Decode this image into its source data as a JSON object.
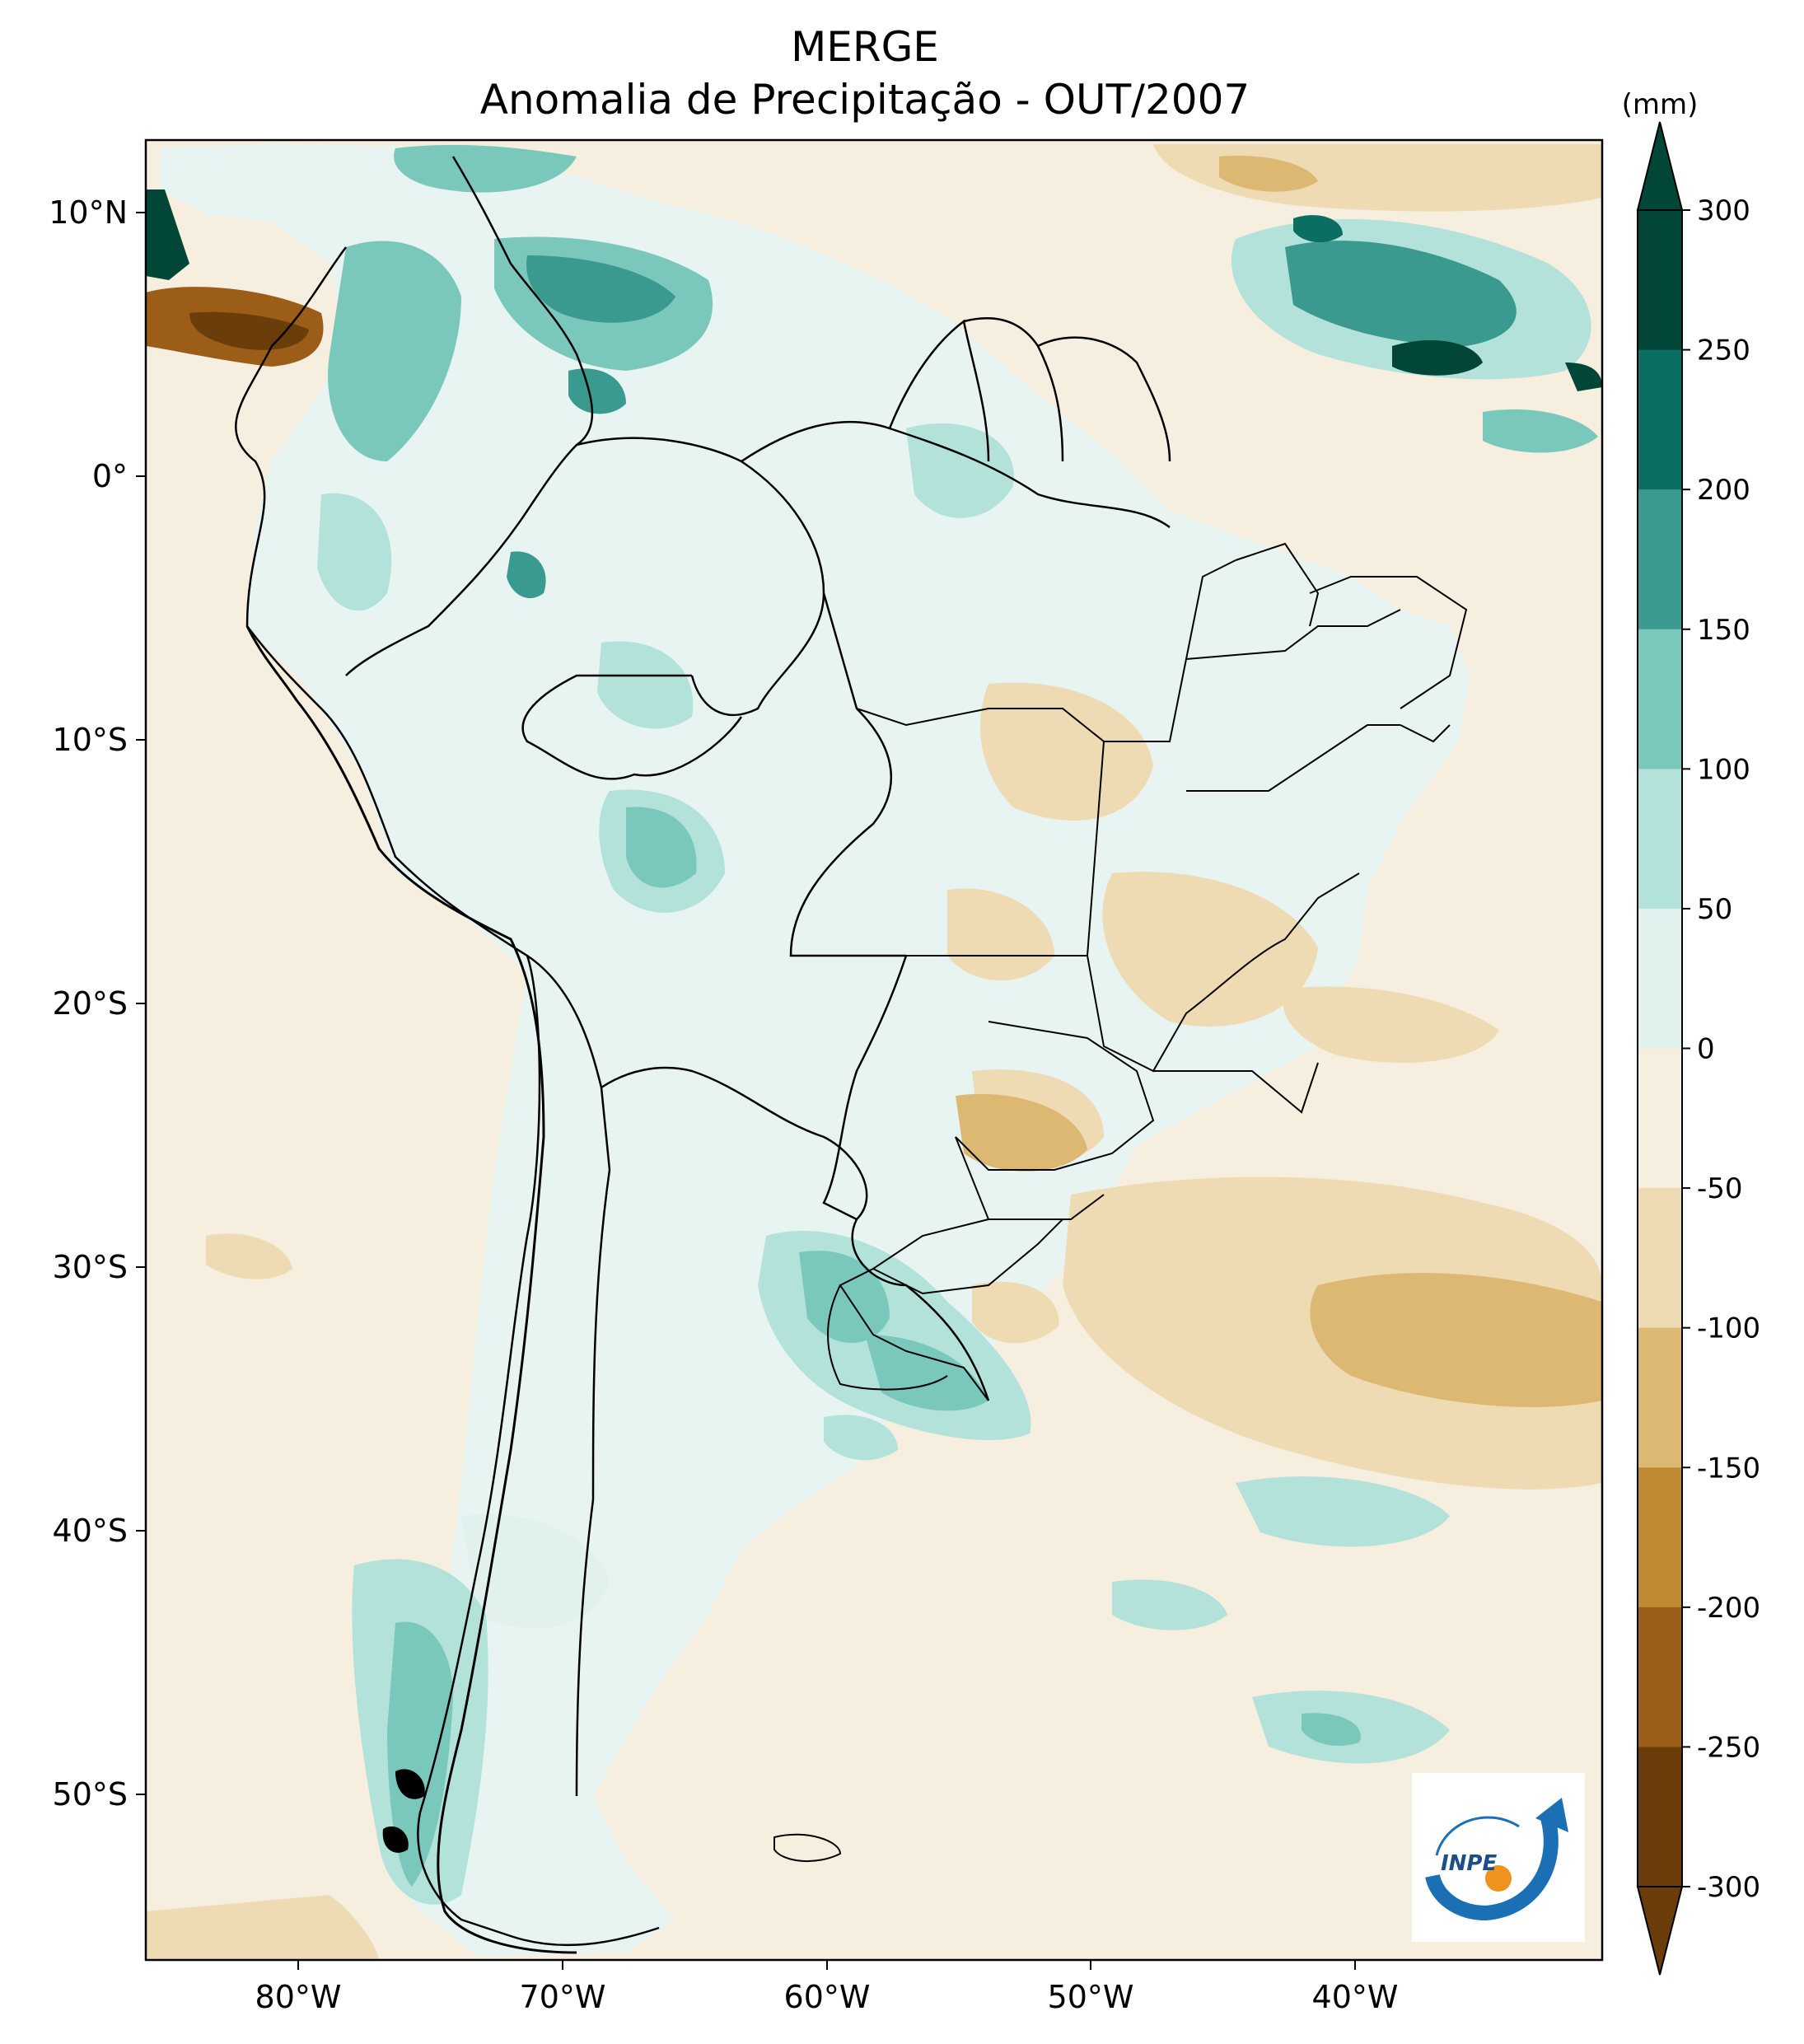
{
  "map": {
    "title": "MERGE",
    "subtitle": "Anomalia de Precipitação - OUT/2007",
    "units": "(mm)",
    "latitude_labels": [
      "10°N",
      "0°",
      "10°S",
      "20°S",
      "30°S",
      "40°S",
      "50°S"
    ],
    "longitude_labels": [
      "80°W",
      "70°W",
      "60°W",
      "50°W",
      "40°W"
    ],
    "colorbar": {
      "levels": [
        300,
        250,
        200,
        150,
        100,
        50,
        0,
        -50,
        -100,
        -150,
        -200,
        -250,
        -300
      ],
      "colors": [
        "#014636",
        "#0a6e63",
        "#3a9a8f",
        "#7ac8bc",
        "#b3e2da",
        "#e0f1ee",
        "#f6efdf",
        "#eedbb4",
        "#dcb873",
        "#c08a33",
        "#9b5d18",
        "#6a3d0b"
      ]
    },
    "logo_text": "INPE",
    "colors": {
      "ocean_neutral": "#f6efdf",
      "land_neutral": "#e0f1ee",
      "border": "#000000"
    }
  }
}
